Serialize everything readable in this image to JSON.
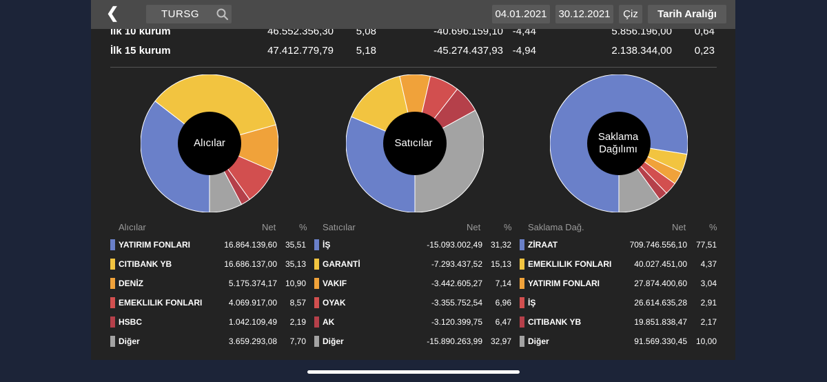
{
  "header": {
    "back_icon": "chevron-left-icon",
    "search_value": "TURSG",
    "search_icon": "search-icon",
    "date_start": "04.01.2021",
    "date_end": "30.12.2021",
    "draw_label": "Çiz",
    "range_label": "Tarih Aralığı"
  },
  "summary": [
    {
      "name": "İlk 10 kurum",
      "v1": "46.552.356,30",
      "p1": "5,08",
      "v2": "-40.696.159,10",
      "p2": "-4,44",
      "v3": "5.856.196,00",
      "p3": "0,64"
    },
    {
      "name": "İlk 15 kurum",
      "v1": "47.412.779,79",
      "p1": "5,18",
      "v2": "-45.274.437,93",
      "p2": "-4,94",
      "v3": "2.138.344,00",
      "p3": "0,23"
    }
  ],
  "colors": [
    "#6a80c9",
    "#f2c440",
    "#f0a23a",
    "#d24f4f",
    "#b5404a",
    "#a3a3a3"
  ],
  "charts": [
    {
      "center": "Alıcılar",
      "header_label": "Alıcılar",
      "header_net": "Net",
      "header_pct": "%",
      "rows": [
        {
          "name": "YATIRIM FONLARI",
          "net": "16.864.139,60",
          "pct": "35,51",
          "value": 35.51
        },
        {
          "name": "CITIBANK YB",
          "net": "16.686.137,00",
          "pct": "35,13",
          "value": 35.13
        },
        {
          "name": "DENİZ",
          "net": "5.175.374,17",
          "pct": "10,90",
          "value": 10.9
        },
        {
          "name": "EMEKLILIK FONLARI",
          "net": "4.069.917,00",
          "pct": "8,57",
          "value": 8.57
        },
        {
          "name": "HSBC",
          "net": "1.042.109,49",
          "pct": "2,19",
          "value": 2.19
        },
        {
          "name": "Diğer",
          "net": "3.659.293,08",
          "pct": "7,70",
          "value": 7.7
        }
      ]
    },
    {
      "center": "Satıcılar",
      "header_label": "Satıcılar",
      "header_net": "Net",
      "header_pct": "%",
      "rows": [
        {
          "name": "İŞ",
          "net": "-15.093.002,49",
          "pct": "31,32",
          "value": 31.32
        },
        {
          "name": "GARANTİ",
          "net": "-7.293.437,52",
          "pct": "15,13",
          "value": 15.13
        },
        {
          "name": "VAKIF",
          "net": "-3.442.605,27",
          "pct": "7,14",
          "value": 7.14
        },
        {
          "name": "OYAK",
          "net": "-3.355.752,54",
          "pct": "6,96",
          "value": 6.96
        },
        {
          "name": "AK",
          "net": "-3.120.399,75",
          "pct": "6,47",
          "value": 6.47
        },
        {
          "name": "Diğer",
          "net": "-15.890.263,99",
          "pct": "32,97",
          "value": 32.97
        }
      ]
    },
    {
      "center_line1": "Saklama",
      "center_line2": "Dağılımı",
      "header_label": "Saklama Dağ.",
      "header_net": "Net",
      "header_pct": "%",
      "rows": [
        {
          "name": "ZİRAAT",
          "net": "709.746.556,10",
          "pct": "77,51",
          "value": 77.51
        },
        {
          "name": "EMEKLILIK FONLARI",
          "net": "40.027.451,00",
          "pct": "4,37",
          "value": 4.37
        },
        {
          "name": "YATIRIM FONLARI",
          "net": "27.874.400,60",
          "pct": "3,04",
          "value": 3.04
        },
        {
          "name": "İŞ",
          "net": "26.614.635,28",
          "pct": "2,91",
          "value": 2.91
        },
        {
          "name": "CITIBANK YB",
          "net": "19.851.838,47",
          "pct": "2,17",
          "value": 2.17
        },
        {
          "name": "Diğer",
          "net": "91.569.330,45",
          "pct": "10,00",
          "value": 10.0
        }
      ]
    }
  ]
}
